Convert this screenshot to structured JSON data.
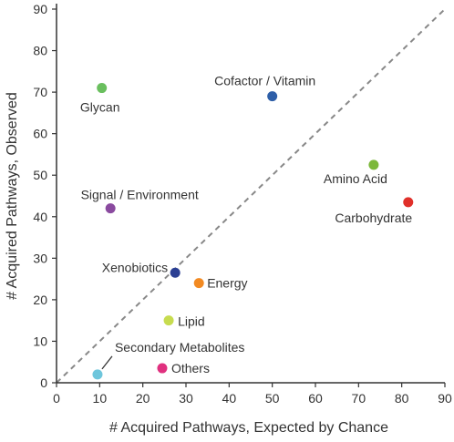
{
  "chart_data": {
    "type": "scatter",
    "title": "",
    "xlabel": "# Acquired Pathways, Expected by Chance",
    "ylabel": "# Acquired Pathways, Observed",
    "xlim": [
      0,
      90
    ],
    "ylim": [
      0,
      90
    ],
    "xticks": [
      0,
      10,
      20,
      30,
      40,
      50,
      60,
      70,
      80,
      90
    ],
    "yticks": [
      0,
      10,
      20,
      30,
      40,
      50,
      60,
      70,
      80,
      90
    ],
    "grid": false,
    "reference_line": {
      "style": "dashed",
      "description": "y = x",
      "from": [
        0,
        0
      ],
      "to": [
        90,
        90
      ]
    },
    "points": [
      {
        "label": "Glycan",
        "x": 10.5,
        "y": 71,
        "color": "#6abf5e"
      },
      {
        "label": "Cofactor / Vitamin",
        "x": 50,
        "y": 69,
        "color": "#2e5fa8"
      },
      {
        "label": "Amino Acid",
        "x": 73.5,
        "y": 52.5,
        "color": "#7cb83a"
      },
      {
        "label": "Carbohydrate",
        "x": 81.5,
        "y": 43.5,
        "color": "#e0302a"
      },
      {
        "label": "Signal / Environment",
        "x": 12.5,
        "y": 42,
        "color": "#8a4a9f"
      },
      {
        "label": "Xenobiotics",
        "x": 27.5,
        "y": 26.5,
        "color": "#2b3f93"
      },
      {
        "label": "Energy",
        "x": 33,
        "y": 24,
        "color": "#f28a22"
      },
      {
        "label": "Lipid",
        "x": 26,
        "y": 15,
        "color": "#c7dc4f"
      },
      {
        "label": "Secondary Metabolites",
        "x": 9.5,
        "y": 2,
        "color": "#6ec6dc"
      },
      {
        "label": "Others",
        "x": 24.5,
        "y": 3.5,
        "color": "#e0307f"
      }
    ]
  }
}
